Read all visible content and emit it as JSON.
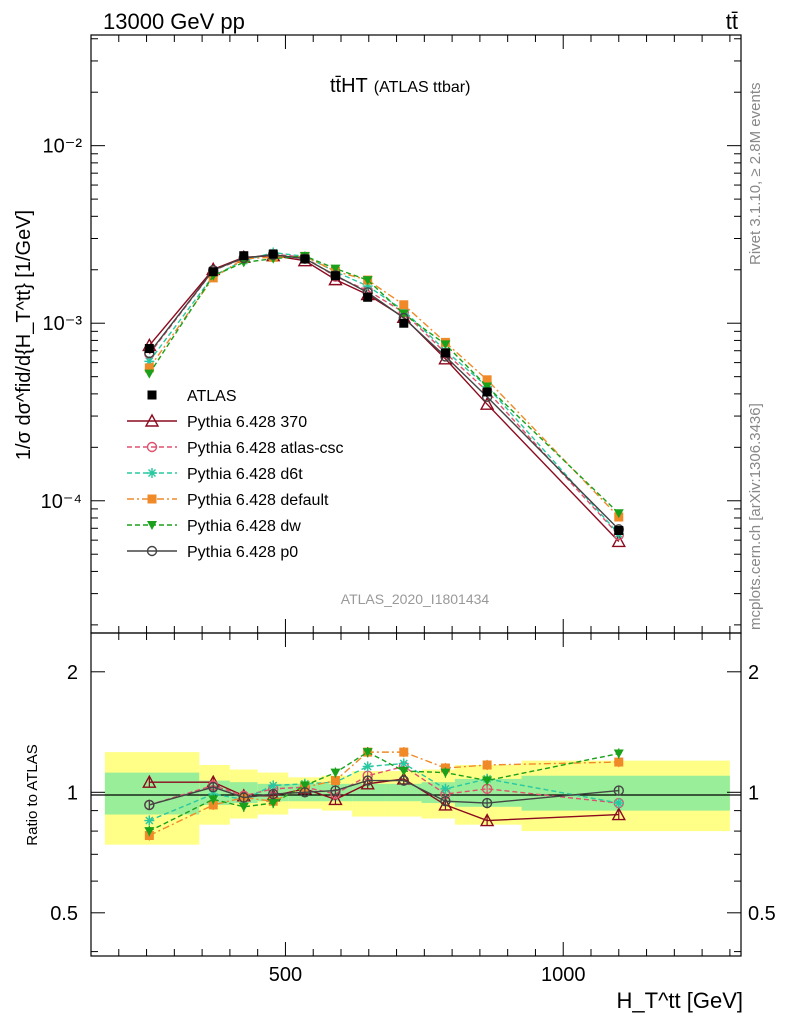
{
  "header": {
    "left": "13000 GeV pp",
    "right": "tt̄"
  },
  "side_text": {
    "top": "Rivet 3.1.10, ≥ 2.8M events",
    "bottom": "mcplots.cern.ch [arXiv:1306.3436]"
  },
  "chart_data": [
    {
      "type": "line",
      "title": "tt̄HT",
      "subtitle": "(ATLAS ttbar)",
      "watermark": "ATLAS_2020_I1801434",
      "xlabel": "H_T^tt [GeV]",
      "ylabel": "1/σ dσ^fid/d{H_T^tt} [1/GeV]",
      "yscale": "log",
      "xlim": [
        150,
        1320
      ],
      "ylim": [
        1.8e-05,
        0.042
      ],
      "x_ticks": [
        500,
        1000
      ],
      "y_ticks": [
        0.0001,
        0.001,
        0.01
      ],
      "y_tick_labels": [
        "10⁻⁴",
        "10⁻³",
        "10⁻²"
      ],
      "legend_position": "middle-left",
      "x": [
        255,
        370,
        425,
        478,
        535,
        590,
        648,
        713,
        788,
        863,
        1100
      ],
      "series": [
        {
          "name": "ATLAS",
          "color": "#000000",
          "marker": "filled-square",
          "line": "none",
          "values": [
            0.00072,
            0.00195,
            0.0024,
            0.00245,
            0.0023,
            0.00185,
            0.0014,
            0.001,
            0.00068,
            0.00041,
            6.8e-05
          ]
        },
        {
          "name": "Pythia 6.428 370",
          "color": "#8b0a1e",
          "marker": "open-triangle",
          "line": "solid",
          "values": [
            0.00075,
            0.00201,
            0.00235,
            0.0024,
            0.00225,
            0.00176,
            0.00145,
            0.00108,
            0.00063,
            0.00035,
            5.9e-05
          ]
        },
        {
          "name": "Pythia 6.428 atlas-csc",
          "color": "#e0506e",
          "marker": "open-circle",
          "line": "dashed",
          "values": [
            0.00067,
            0.00198,
            0.00232,
            0.00245,
            0.00235,
            0.00183,
            0.00153,
            0.00115,
            0.00068,
            0.000415,
            6.4e-05
          ]
        },
        {
          "name": "Pythia 6.428 d6t",
          "color": "#28c8a0",
          "marker": "star",
          "line": "dashed",
          "values": [
            0.00061,
            0.00185,
            0.00225,
            0.0025,
            0.00238,
            0.00195,
            0.00162,
            0.00118,
            0.0007,
            0.00044,
            6.5e-05
          ]
        },
        {
          "name": "Pythia 6.428 default",
          "color": "#f08a28",
          "marker": "filled-square",
          "line": "dashdot",
          "values": [
            0.00056,
            0.0018,
            0.00231,
            0.00235,
            0.00238,
            0.00196,
            0.00175,
            0.00127,
            0.00078,
            0.00048,
            8.1e-05
          ]
        },
        {
          "name": "Pythia 6.428 dw",
          "color": "#1aa01a",
          "marker": "filled-triangle-down",
          "line": "dashed",
          "values": [
            0.00052,
            0.00185,
            0.0022,
            0.00231,
            0.00239,
            0.00203,
            0.00175,
            0.00113,
            0.00076,
            0.00044,
            8.5e-05
          ]
        },
        {
          "name": "Pythia 6.428 p0",
          "color": "#444444",
          "marker": "open-circle",
          "line": "solid",
          "values": [
            0.00068,
            0.00199,
            0.00233,
            0.00243,
            0.00231,
            0.00186,
            0.00149,
            0.00107,
            0.00065,
            0.000385,
            6.9e-05
          ]
        }
      ]
    },
    {
      "type": "line",
      "ylabel": "Ratio to ATLAS",
      "yscale": "log",
      "xlim": [
        150,
        1320
      ],
      "ylim": [
        0.39,
        2.5
      ],
      "y_ticks": [
        0.5,
        1,
        2
      ],
      "y_tick_labels": [
        "0.5",
        "1",
        "2"
      ],
      "bins": [
        {
          "lo": 175,
          "hi": 345,
          "stat": 0.12,
          "total": 0.26
        },
        {
          "lo": 345,
          "hi": 400,
          "stat": 0.07,
          "total": 0.17
        },
        {
          "lo": 400,
          "hi": 450,
          "stat": 0.06,
          "total": 0.14
        },
        {
          "lo": 450,
          "hi": 505,
          "stat": 0.05,
          "total": 0.12
        },
        {
          "lo": 505,
          "hi": 565,
          "stat": 0.05,
          "total": 0.09
        },
        {
          "lo": 565,
          "hi": 620,
          "stat": 0.05,
          "total": 0.1
        },
        {
          "lo": 620,
          "hi": 680,
          "stat": 0.05,
          "total": 0.13
        },
        {
          "lo": 680,
          "hi": 745,
          "stat": 0.05,
          "total": 0.13
        },
        {
          "lo": 745,
          "hi": 805,
          "stat": 0.06,
          "total": 0.14
        },
        {
          "lo": 805,
          "hi": 925,
          "stat": 0.08,
          "total": 0.17
        },
        {
          "lo": 925,
          "hi": 1300,
          "stat": 0.1,
          "total": 0.2
        }
      ],
      "series": [
        {
          "name": "Pythia 6.428 370",
          "values": [
            1.06,
            1.06,
            0.98,
            0.98,
            1.02,
            0.96,
            1.05,
            1.08,
            0.93,
            0.85,
            0.88
          ]
        },
        {
          "name": "Pythia 6.428 atlas-csc",
          "values": [
            0.93,
            1.04,
            0.98,
            1.02,
            1.03,
            0.99,
            1.1,
            1.16,
            0.99,
            1.02,
            0.94
          ]
        },
        {
          "name": "Pythia 6.428 d6t",
          "values": [
            0.85,
            0.99,
            0.96,
            1.04,
            1.05,
            1.06,
            1.16,
            1.18,
            1.02,
            1.08,
            0.94
          ]
        },
        {
          "name": "Pythia 6.428 default",
          "values": [
            0.78,
            0.93,
            0.97,
            0.95,
            1.03,
            1.07,
            1.26,
            1.26,
            1.15,
            1.17,
            1.19
          ]
        },
        {
          "name": "Pythia 6.428 dw",
          "values": [
            0.8,
            0.96,
            0.92,
            0.94,
            1.04,
            1.12,
            1.26,
            1.13,
            1.12,
            1.07,
            1.25
          ]
        },
        {
          "name": "Pythia 6.428 p0",
          "values": [
            0.93,
            1.03,
            0.97,
            0.99,
            1.0,
            1.01,
            1.07,
            1.07,
            0.95,
            0.94,
            1.01
          ]
        }
      ]
    }
  ]
}
